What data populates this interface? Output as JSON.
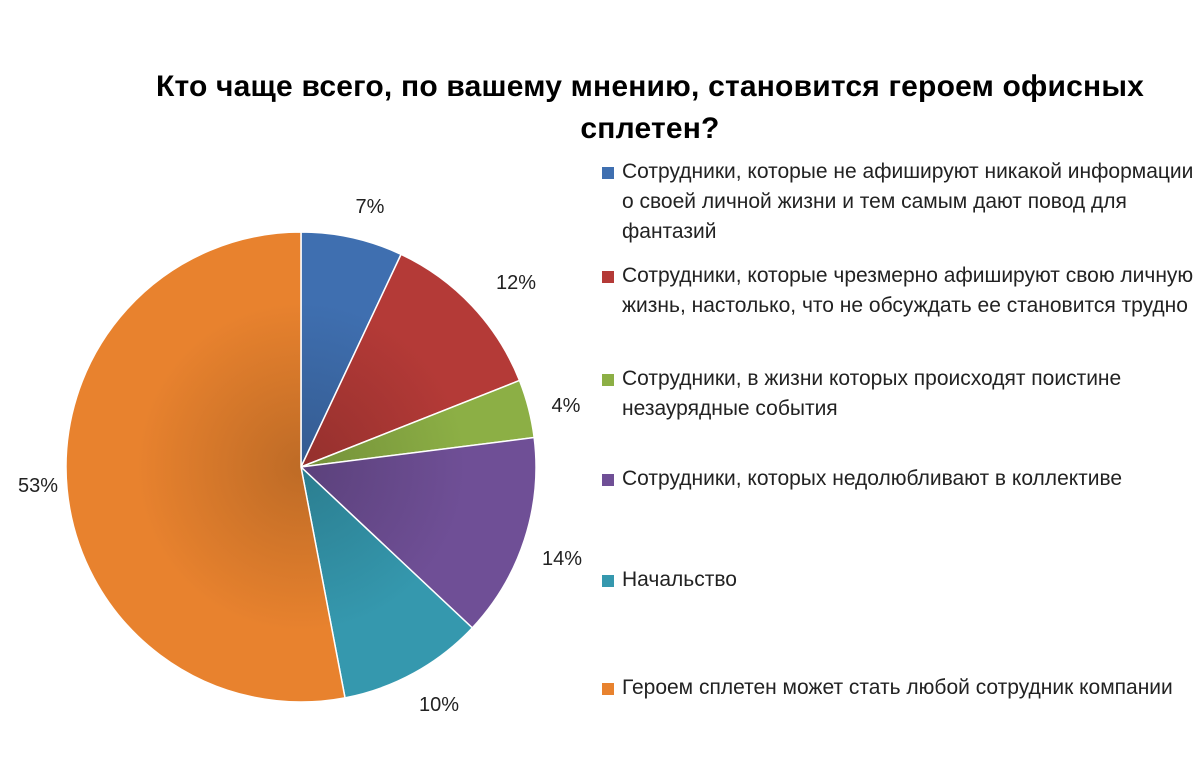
{
  "chart_data": {
    "type": "pie",
    "title": "Кто чаще всего, по вашему мнению, становится героем офисных сплетен?",
    "legend_position": "right",
    "slices": [
      {
        "label": "Сотрудники, которые не афишируют никакой информации о своей личной жизни и тем самым дают повод для фантазий",
        "value": 7,
        "display": "7%",
        "color": "#3F6FB0"
      },
      {
        "label": "Сотрудники, которые чрезмерно афишируют свою личную жизнь, настолько, что не обсуждать ее становится трудно",
        "value": 12,
        "display": "12%",
        "color": "#B43A37"
      },
      {
        "label": "Сотрудники, в жизни которых происходят поистине незаурядные события",
        "value": 4,
        "display": "4%",
        "color": "#8CAF45"
      },
      {
        "label": "Сотрудники, которых недолюбливают в коллективе",
        "value": 14,
        "display": "14%",
        "color": "#6F4F96"
      },
      {
        "label": "Начальство",
        "value": 10,
        "display": "10%",
        "color": "#3598AE"
      },
      {
        "label": "Героем сплетен может стать любой сотрудник компании",
        "value": 53,
        "display": "53%",
        "color": "#E8822E"
      }
    ]
  }
}
